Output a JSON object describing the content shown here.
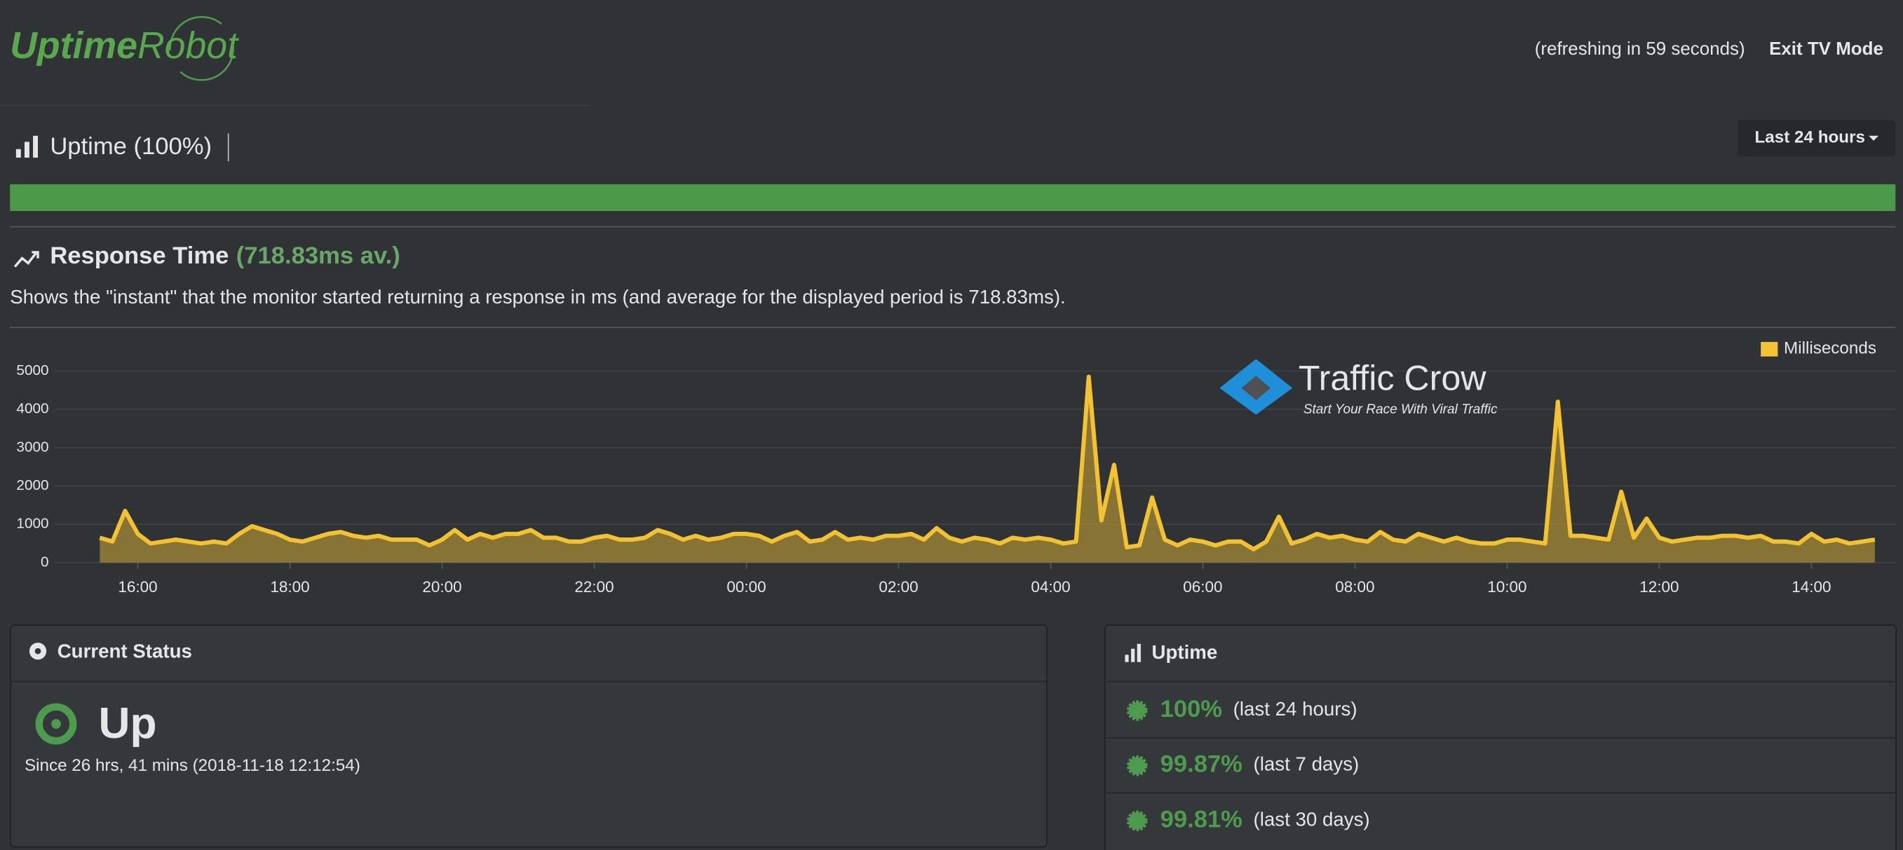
{
  "header": {
    "logo_bold": "Uptime",
    "logo_light": "Robot",
    "refresh": "(refreshing in 59 seconds)",
    "exit": "Exit TV Mode"
  },
  "uptime": {
    "title": "Uptime (100%)",
    "range": "Last 24 hours"
  },
  "response": {
    "title": "Response Time",
    "average": "(718.83ms av.)",
    "description": "Shows the \"instant\" that the monitor started returning a response in ms (and average for the displayed period is 718.83ms)."
  },
  "watermark": {
    "title": "Traffic Crow",
    "subtitle": "Start Your Race With Viral Traffic"
  },
  "chart_data": {
    "type": "line",
    "x": [
      "15:30",
      "15:40",
      "15:50",
      "16:00",
      "16:10",
      "16:20",
      "16:30",
      "16:40",
      "16:50",
      "17:00",
      "17:10",
      "17:20",
      "17:30",
      "17:40",
      "17:50",
      "18:00",
      "18:10",
      "18:20",
      "18:30",
      "18:40",
      "18:50",
      "19:00",
      "19:10",
      "19:20",
      "19:30",
      "19:40",
      "19:50",
      "20:00",
      "20:10",
      "20:20",
      "20:30",
      "20:40",
      "20:50",
      "21:00",
      "21:10",
      "21:20",
      "21:30",
      "21:40",
      "21:50",
      "22:00",
      "22:10",
      "22:20",
      "22:30",
      "22:40",
      "22:50",
      "23:00",
      "23:10",
      "23:20",
      "23:30",
      "23:40",
      "23:50",
      "00:00",
      "00:10",
      "00:20",
      "00:30",
      "00:40",
      "00:50",
      "01:00",
      "01:10",
      "01:20",
      "01:30",
      "01:40",
      "01:50",
      "02:00",
      "02:10",
      "02:20",
      "02:30",
      "02:40",
      "02:50",
      "03:00",
      "03:10",
      "03:20",
      "03:30",
      "03:40",
      "03:50",
      "04:00",
      "04:10",
      "04:20",
      "04:30",
      "04:40",
      "04:50",
      "05:00",
      "05:10",
      "05:20",
      "05:30",
      "05:40",
      "05:50",
      "06:00",
      "06:10",
      "06:20",
      "06:30",
      "06:40",
      "06:50",
      "07:00",
      "07:10",
      "07:20",
      "07:30",
      "07:40",
      "07:50",
      "08:00",
      "08:10",
      "08:20",
      "08:30",
      "08:40",
      "08:50",
      "09:00",
      "09:10",
      "09:20",
      "09:30",
      "09:40",
      "09:50",
      "10:00",
      "10:10",
      "10:20",
      "10:30",
      "10:40",
      "10:50",
      "11:00",
      "11:10",
      "11:20",
      "11:30",
      "11:40",
      "11:50",
      "12:00",
      "12:10",
      "12:20",
      "12:30",
      "12:40",
      "12:50",
      "13:00",
      "13:10",
      "13:20",
      "13:30",
      "13:40",
      "13:50",
      "14:00",
      "14:10",
      "14:20",
      "14:30",
      "14:40",
      "14:50"
    ],
    "series": [
      {
        "name": "Milliseconds",
        "color": "#f2c232",
        "values": [
          650,
          550,
          1350,
          750,
          500,
          550,
          600,
          550,
          500,
          550,
          500,
          750,
          950,
          850,
          750,
          600,
          550,
          650,
          750,
          800,
          700,
          650,
          700,
          600,
          600,
          600,
          450,
          600,
          850,
          600,
          750,
          650,
          750,
          750,
          850,
          650,
          650,
          550,
          550,
          650,
          700,
          600,
          600,
          650,
          850,
          750,
          600,
          700,
          600,
          650,
          750,
          750,
          700,
          550,
          700,
          800,
          550,
          600,
          800,
          600,
          650,
          600,
          700,
          700,
          750,
          600,
          900,
          650,
          550,
          650,
          600,
          500,
          650,
          600,
          650,
          600,
          500,
          550,
          4850,
          1100,
          2550,
          400,
          450,
          1700,
          600,
          450,
          600,
          550,
          450,
          550,
          550,
          350,
          550,
          1200,
          500,
          600,
          750,
          650,
          700,
          600,
          550,
          800,
          600,
          550,
          750,
          650,
          550,
          650,
          550,
          500,
          500,
          600,
          600,
          550,
          500,
          4200,
          700,
          700,
          650,
          600,
          1850,
          650,
          1150,
          650,
          550,
          600,
          650,
          650,
          700,
          700,
          650,
          700,
          550,
          550,
          500,
          750,
          550,
          600,
          500,
          550,
          600
        ]
      }
    ],
    "ylim": [
      0,
      5000
    ],
    "yticks": [
      0,
      1000,
      2000,
      3000,
      4000,
      5000
    ],
    "xticks": [
      "16:00",
      "18:00",
      "20:00",
      "22:00",
      "00:00",
      "02:00",
      "04:00",
      "06:00",
      "08:00",
      "10:00",
      "12:00",
      "14:00"
    ],
    "grid": true,
    "legend": "top-right"
  },
  "status": {
    "title": "Current Status",
    "state": "Up",
    "since": "Since 26 hrs, 41 mins (2018-11-18 12:12:54)"
  },
  "uptime_panel": {
    "title": "Uptime",
    "rows": [
      {
        "value": "100%",
        "period": "(last 24 hours)"
      },
      {
        "value": "99.87%",
        "period": "(last 7 days)"
      },
      {
        "value": "99.81%",
        "period": "(last 30 days)"
      }
    ]
  }
}
